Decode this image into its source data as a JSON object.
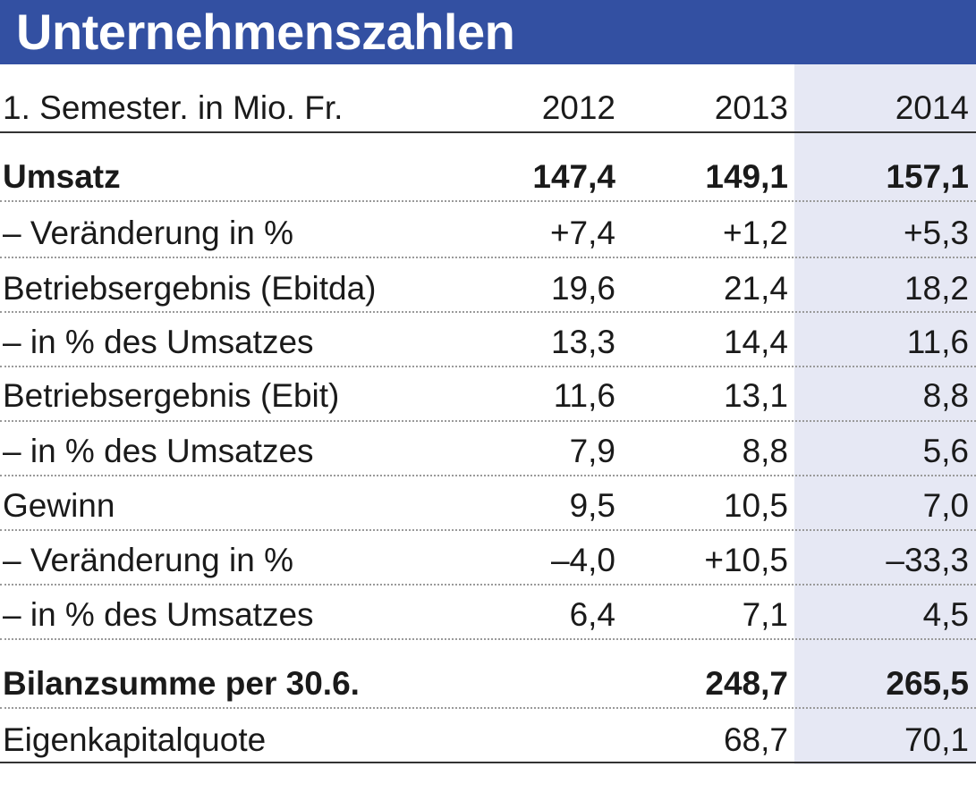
{
  "title": "Unternehmenszahlen",
  "chart_data": {
    "type": "table",
    "title": "Unternehmenszahlen",
    "header": {
      "label": "1. Semester. in Mio. Fr.",
      "years": [
        "2012",
        "2013",
        "2014"
      ]
    },
    "highlight_column": "2014",
    "rows": [
      {
        "label": "Umsatz",
        "values": [
          "147,4",
          "149,1",
          "157,1"
        ],
        "bold": true
      },
      {
        "label": "– Veränderung in %",
        "values": [
          "+7,4",
          "+1,2",
          "+5,3"
        ],
        "bold": false
      },
      {
        "label": "Betriebsergebnis (Ebitda)",
        "values": [
          "19,6",
          "21,4",
          "18,2"
        ],
        "bold": false
      },
      {
        "label": "– in % des Umsatzes",
        "values": [
          "13,3",
          "14,4",
          "11,6"
        ],
        "bold": false
      },
      {
        "label": "Betriebsergebnis (Ebit)",
        "values": [
          "11,6",
          "13,1",
          "8,8"
        ],
        "bold": false
      },
      {
        "label": "– in % des Umsatzes",
        "values": [
          "7,9",
          "8,8",
          "5,6"
        ],
        "bold": false
      },
      {
        "label": "Gewinn",
        "values": [
          "9,5",
          "10,5",
          "7,0"
        ],
        "bold": false
      },
      {
        "label": "– Veränderung in %",
        "values": [
          "–4,0",
          "+10,5",
          "–33,3"
        ],
        "bold": false
      },
      {
        "label": "– in % des Umsatzes",
        "values": [
          "6,4",
          "7,1",
          "4,5"
        ],
        "bold": false
      },
      {
        "label": "Bilanzsumme per 30.6.",
        "values": [
          "",
          "248,7",
          "265,5"
        ],
        "bold": true
      },
      {
        "label": "Eigenkapitalquote",
        "values": [
          "",
          "68,7",
          "70,1"
        ],
        "bold": false
      }
    ]
  },
  "colors": {
    "title_bar": "#3350a2",
    "highlight_column": "#e6e8f4"
  }
}
